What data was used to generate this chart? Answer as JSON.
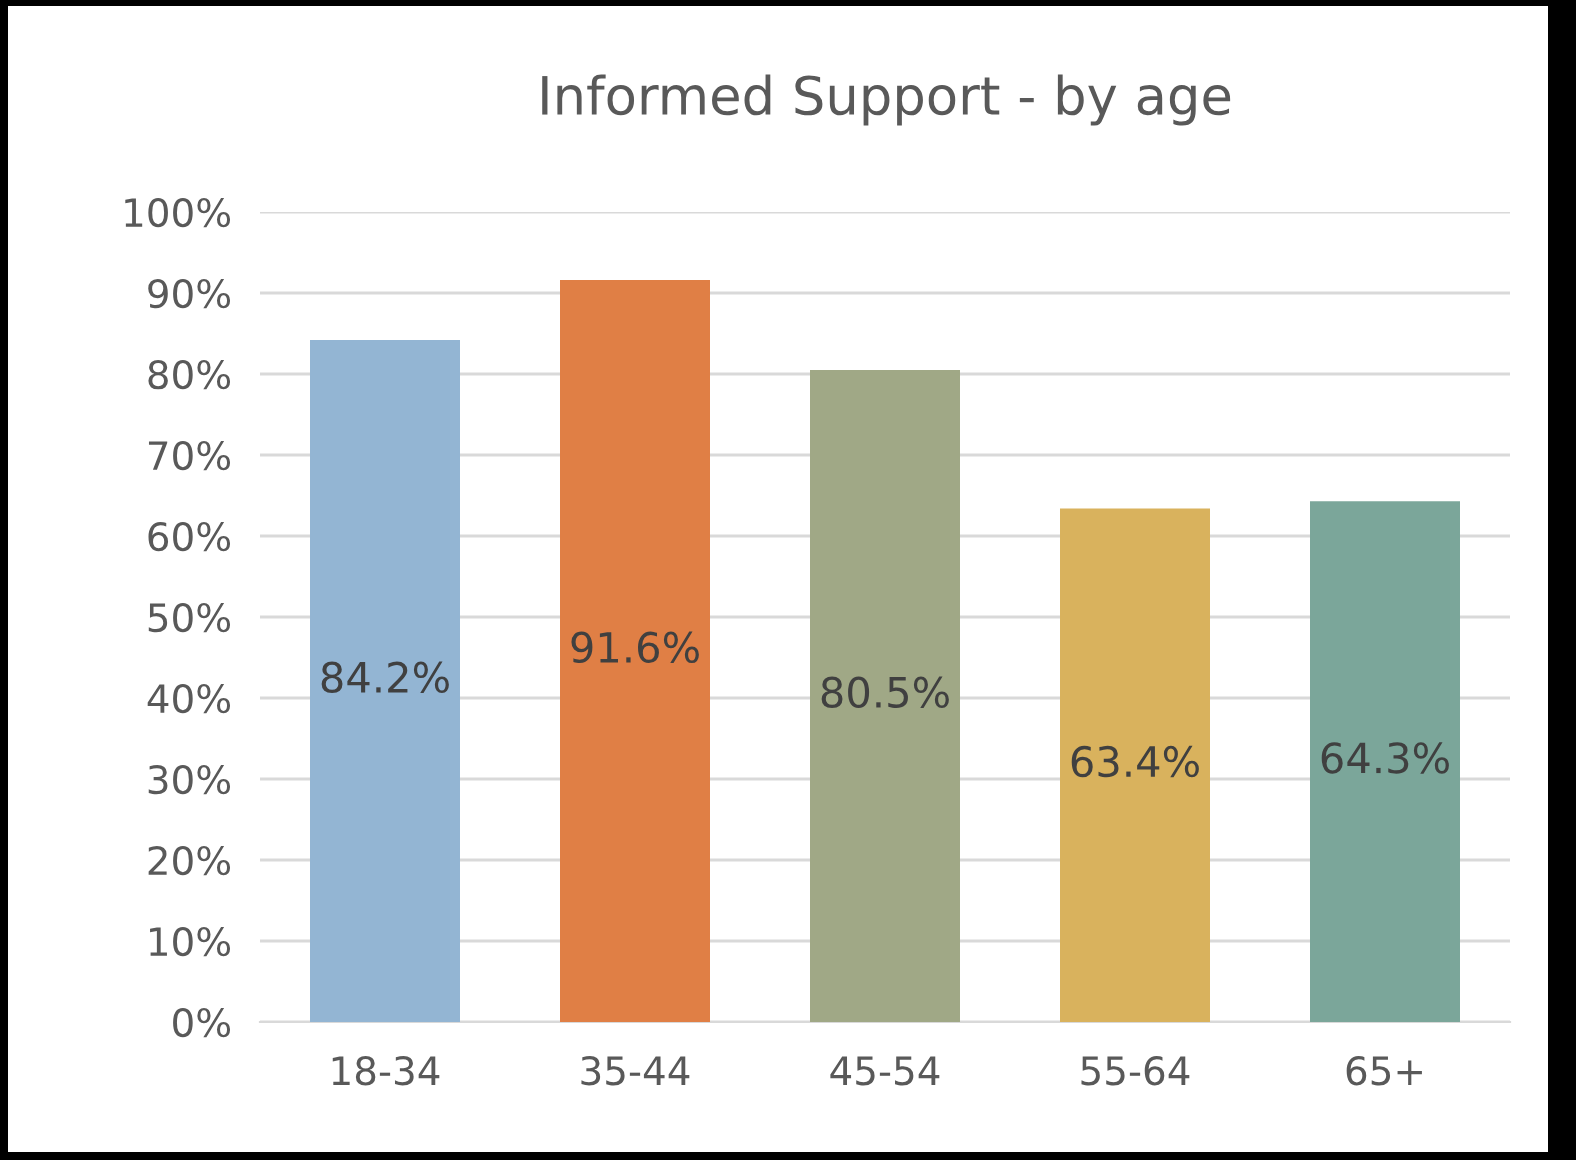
{
  "chart_data": {
    "type": "bar",
    "title": "Informed Support - by age",
    "categories": [
      "18-34",
      "35-44",
      "45-54",
      "55-64",
      "65+"
    ],
    "values": [
      84.2,
      91.6,
      80.5,
      63.4,
      64.3
    ],
    "colors": [
      "#93b5d3",
      "#e07f45",
      "#a0a886",
      "#d9b25d",
      "#7ba69a"
    ],
    "value_labels": [
      "84.2%",
      "91.6%",
      "80.5%",
      "63.4%",
      "64.3%"
    ],
    "ylim": [
      0,
      100
    ],
    "yticks": [
      {
        "value": 0,
        "label": "0%"
      },
      {
        "value": 10,
        "label": "10%"
      },
      {
        "value": 20,
        "label": "20%"
      },
      {
        "value": 30,
        "label": "30%"
      },
      {
        "value": 40,
        "label": "40%"
      },
      {
        "value": 50,
        "label": "50%"
      },
      {
        "value": 60,
        "label": "60%"
      },
      {
        "value": 70,
        "label": "70%"
      },
      {
        "value": 80,
        "label": "80%"
      },
      {
        "value": 90,
        "label": "90%"
      },
      {
        "value": 100,
        "label": "100%"
      }
    ],
    "grid": "y",
    "legend": false
  }
}
